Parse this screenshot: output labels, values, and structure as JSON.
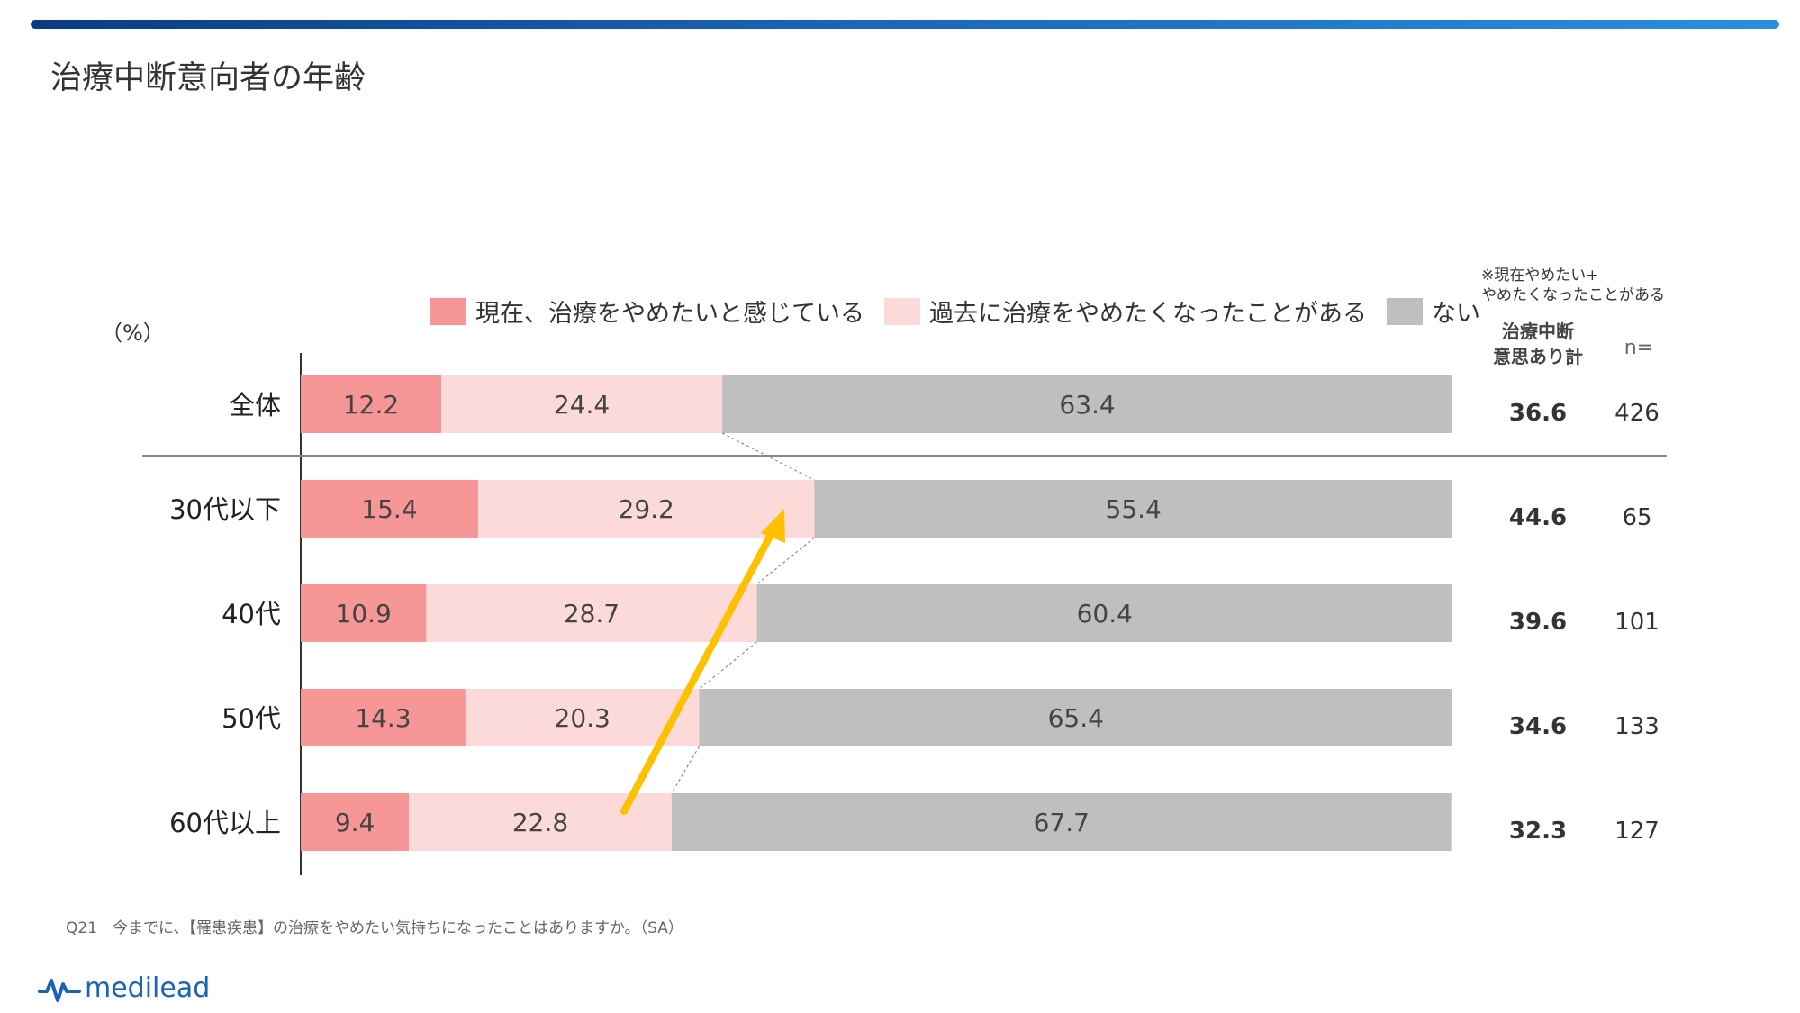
{
  "page": {
    "title": "治療中断意向者の年齢",
    "unit": "（%）",
    "note_line1": "※現在やめたい+",
    "note_line2": "やめたくなったことがある",
    "sum_header_line1": "治療中断",
    "sum_header_line2": "意思あり計",
    "n_header": "n=",
    "footnote": "Q21　今までに、【罹患疾患】の治療をやめたい気持ちになったことはありますか。（SA）",
    "logo_text": "medilead"
  },
  "colors": {
    "current": "#f79696",
    "past": "#fddada",
    "none": "#bfbfbf",
    "arrow": "#ffc000",
    "brand": "#1a63b8"
  },
  "chart_data": {
    "type": "bar",
    "orientation": "horizontal",
    "stacked": true,
    "xlim": [
      0,
      100
    ],
    "categories": [
      "全体",
      "30代以下",
      "40代",
      "50代",
      "60代以上"
    ],
    "series": [
      {
        "name": "現在、治療をやめたいと感じている",
        "values": [
          12.2,
          15.4,
          10.9,
          14.3,
          9.4
        ]
      },
      {
        "name": "過去に治療をやめたくなったことがある",
        "values": [
          24.4,
          29.2,
          28.7,
          20.3,
          22.8
        ]
      },
      {
        "name": "ない",
        "values": [
          63.4,
          55.4,
          60.4,
          65.4,
          67.7
        ]
      }
    ],
    "sum_values": [
      "36.6",
      "44.6",
      "39.6",
      "34.6",
      "32.3"
    ],
    "n_values": [
      "426",
      "65",
      "101",
      "133",
      "127"
    ],
    "legend": "top",
    "grid": false
  }
}
